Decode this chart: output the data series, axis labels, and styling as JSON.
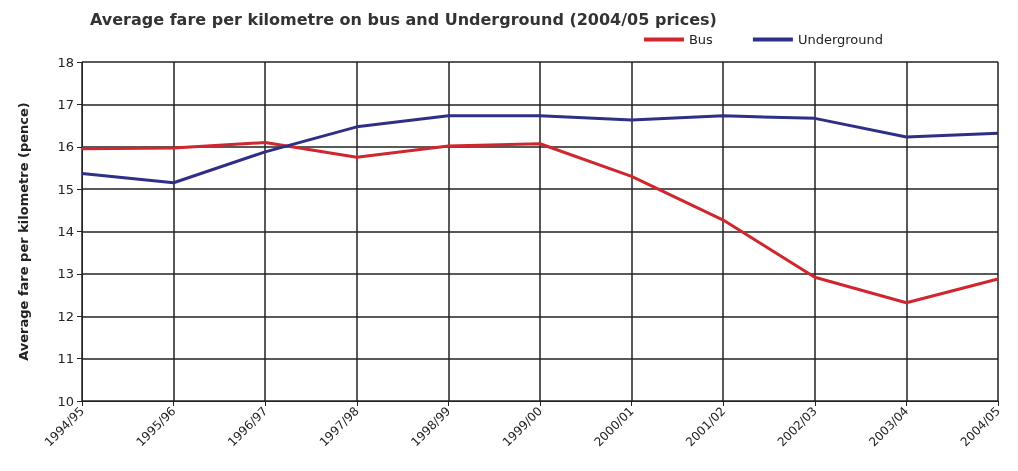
{
  "chart_data": {
    "type": "line",
    "title": "Average fare per kilometre on bus and Underground (2004/05 prices)",
    "ylabel": "Average fare per kilometre (pence)",
    "categories": [
      "1994/95",
      "1995/96",
      "1996/97",
      "1997/98",
      "1998/99",
      "1999/00",
      "2000/01",
      "2001/02",
      "2002/03",
      "2003/04",
      "2004/05"
    ],
    "series": [
      {
        "name": "Bus",
        "color": "#d0262e",
        "values": [
          15.95,
          15.97,
          16.1,
          15.75,
          16.02,
          16.07,
          15.3,
          14.27,
          12.92,
          12.32,
          12.88
        ]
      },
      {
        "name": "Underground",
        "color": "#2e2f86",
        "values": [
          15.37,
          15.15,
          15.88,
          16.47,
          16.73,
          16.73,
          16.63,
          16.73,
          16.67,
          16.23,
          16.32
        ]
      }
    ],
    "ylim": [
      10,
      18
    ],
    "yticks": [
      10,
      11,
      12,
      13,
      14,
      15,
      16,
      17,
      18
    ],
    "grid": true,
    "legend": "top right",
    "marker": "none",
    "line_style": "solid"
  }
}
